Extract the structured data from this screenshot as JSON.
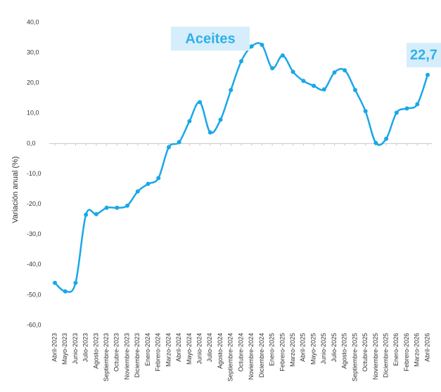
{
  "chart_data": {
    "type": "line",
    "title": "Aceites",
    "y_label": "Variación anual (%)",
    "annotation": "22,7",
    "categories": [
      "Abril-2023",
      "Mayo-2023",
      "Junio-2023",
      "Julio-2023",
      "Agosto-2023",
      "Septiembre-2023",
      "Octubre-2023",
      "Noviembre-2023",
      "Diciembre-2023",
      "Enero-2024",
      "Febrero-2024",
      "Marzo-2024",
      "Abril-2024",
      "Mayo-2024",
      "Junio-2024",
      "Julio-2024",
      "Agosto-2024",
      "Septiembre-2024",
      "Octubre-2024",
      "Noviembre-2024",
      "Diciembre-2024",
      "Enero-2025",
      "Febrero-2025",
      "Marzo-2025",
      "Abril-2025",
      "Mayo-2025",
      "Junio-2025",
      "Julio-2025",
      "Agosto-2025",
      "Septiembre-2025",
      "Octubre-2025",
      "Noviembre-2025",
      "Diciembre-2025",
      "Enero-2026",
      "Febrero-2026",
      "Marzo-2026",
      "Abril-2026"
    ],
    "series": [
      {
        "name": "Aceites",
        "color": "#1aa7e8",
        "values": [
          -46.0,
          -48.8,
          -46.0,
          -23.5,
          -23.3,
          -21.2,
          -21.2,
          -20.5,
          -15.8,
          -13.3,
          -11.4,
          -1.2,
          0.5,
          7.4,
          13.7,
          3.7,
          7.9,
          17.7,
          27.2,
          32.1,
          32.6,
          24.9,
          29.1,
          23.7,
          20.7,
          19.1,
          17.9,
          23.5,
          24.2,
          17.7,
          10.7,
          0.2,
          1.6,
          10.2,
          11.6,
          13.0,
          22.7
        ]
      }
    ],
    "ylim": [
      -60,
      40
    ],
    "yticks": [
      {
        "value": 40,
        "label": "40,0"
      },
      {
        "value": 30,
        "label": "30,0"
      },
      {
        "value": 20,
        "label": "20,0"
      },
      {
        "value": 10,
        "label": "10,0"
      },
      {
        "value": 0,
        "label": "0,0"
      },
      {
        "value": -10,
        "label": "-10,0"
      },
      {
        "value": -20,
        "label": "-20,0"
      },
      {
        "value": -30,
        "label": "-30,0"
      },
      {
        "value": -40,
        "label": "-40,0"
      },
      {
        "value": -50,
        "label": "-50,0"
      },
      {
        "value": -60,
        "label": "-60,0"
      }
    ],
    "grid": false
  }
}
